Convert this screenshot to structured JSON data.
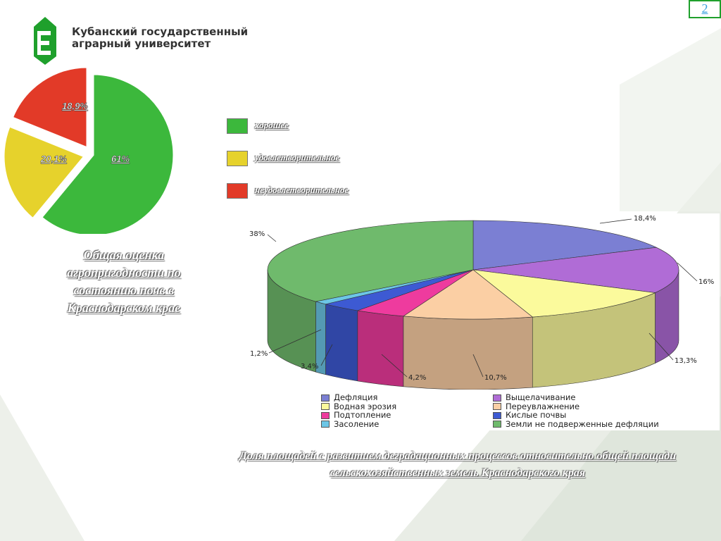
{
  "header": {
    "logo_line1": "Кубанский государственный",
    "logo_line2": "аграрный университет",
    "slide_number": "2"
  },
  "colors": {
    "brand_green": "#1fa02c",
    "good": "#3cb83c",
    "satisfactory": "#e6d22c",
    "unsatisfactory": "#e23a28"
  },
  "chart_data": [
    {
      "type": "pie",
      "slices": [
        {
          "name": "хорошее",
          "value": 61,
          "label": "61%",
          "color": "#3cb83c"
        },
        {
          "name": "удовлетворительное",
          "value": 20.1,
          "label": "20,1%",
          "color": "#e6d22c"
        },
        {
          "name": "неудовлетворительное",
          "value": 18.9,
          "label": "18,9%",
          "color": "#e23a28"
        }
      ],
      "legend": [
        "хорошее",
        "удовлетворительное",
        "неудовлетворительное"
      ],
      "legend_position": "right",
      "caption": "Общая оценка агропригодности по состоянию почв в Краснодарском крае"
    },
    {
      "type": "pie",
      "style": "3d",
      "slices": [
        {
          "name": "Дефляция",
          "value": 18.4,
          "label": "18,4%",
          "color": "#7b7fd3"
        },
        {
          "name": "Выщелачивание",
          "value": 16,
          "label": "16%",
          "color": "#b06cd6"
        },
        {
          "name": "Водная эрозия",
          "value": 13.3,
          "label": "13,3%",
          "color": "#fbfa9c"
        },
        {
          "name": "Переувлажнение",
          "value": 10.7,
          "label": "10,7%",
          "color": "#fbcfa4"
        },
        {
          "name": "Подтопление",
          "value": 4.2,
          "label": "4,2%",
          "color": "#ee3b9e"
        },
        {
          "name": "Кислые почвы",
          "value": 3.4,
          "label": "3,4%",
          "color": "#3d5ad3"
        },
        {
          "name": "Засоление",
          "value": 1.2,
          "label": "1,2%",
          "color": "#6cc6e6"
        },
        {
          "name": "Земли не подверженные дефляции",
          "value": 38,
          "label": "38%",
          "color": "#6fba6c"
        }
      ],
      "legend_position": "bottom",
      "caption": "Доля площадей с развитием деградационных процессов относительно общей площади сельскохозяйственных земель Краснодарского края"
    }
  ]
}
